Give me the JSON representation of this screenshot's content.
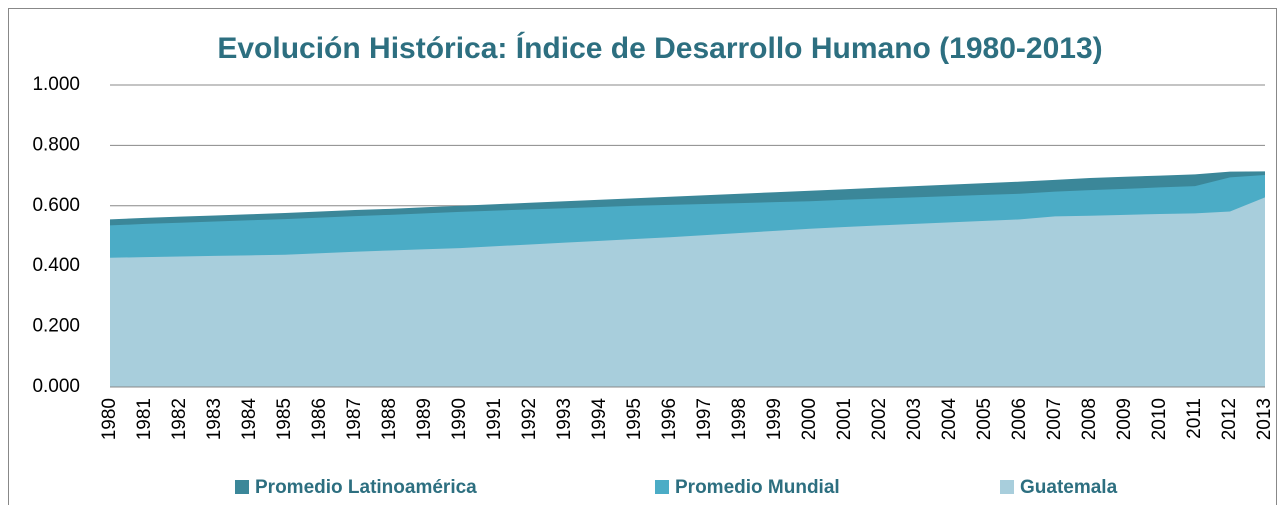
{
  "chart_data": {
    "type": "area",
    "title": "Evolución Histórica:   Índice de Desarrollo Humano (1980-2013)",
    "categories": [
      "1980",
      "1981",
      "1982",
      "1983",
      "1984",
      "1985",
      "1986",
      "1987",
      "1988",
      "1989",
      "1990",
      "1991",
      "1992",
      "1993",
      "1994",
      "1995",
      "1996",
      "1997",
      "1998",
      "1999",
      "2000",
      "2001",
      "2002",
      "2003",
      "2004",
      "2005",
      "2006",
      "2007",
      "2008",
      "2009",
      "2010",
      "2011",
      "2012",
      "2013"
    ],
    "series": [
      {
        "name": "Promedio Latinoamérica",
        "color": "#3b8799",
        "values": [
          0.555,
          0.56,
          0.564,
          0.568,
          0.572,
          0.576,
          0.581,
          0.586,
          0.59,
          0.595,
          0.6,
          0.605,
          0.61,
          0.615,
          0.62,
          0.625,
          0.63,
          0.635,
          0.64,
          0.645,
          0.65,
          0.655,
          0.66,
          0.665,
          0.67,
          0.675,
          0.68,
          0.686,
          0.692,
          0.696,
          0.7,
          0.704,
          0.713,
          0.714
        ]
      },
      {
        "name": "Promedio Mundial",
        "color": "#4bacc6",
        "values": [
          0.535,
          0.54,
          0.544,
          0.548,
          0.552,
          0.556,
          0.561,
          0.566,
          0.57,
          0.575,
          0.58,
          0.584,
          0.588,
          0.592,
          0.596,
          0.6,
          0.603,
          0.606,
          0.609,
          0.612,
          0.615,
          0.62,
          0.624,
          0.628,
          0.632,
          0.636,
          0.64,
          0.647,
          0.652,
          0.656,
          0.661,
          0.665,
          0.694,
          0.702
        ]
      },
      {
        "name": "Guatemala",
        "color": "#a8cedc",
        "values": [
          0.428,
          0.43,
          0.432,
          0.434,
          0.436,
          0.438,
          0.443,
          0.448,
          0.452,
          0.456,
          0.46,
          0.466,
          0.472,
          0.478,
          0.484,
          0.49,
          0.496,
          0.503,
          0.51,
          0.517,
          0.524,
          0.53,
          0.535,
          0.54,
          0.545,
          0.55,
          0.555,
          0.565,
          0.567,
          0.57,
          0.573,
          0.575,
          0.581,
          0.628
        ]
      }
    ],
    "ylim": [
      0,
      1
    ],
    "yticks": [
      {
        "value": 0,
        "label": "0.000"
      },
      {
        "value": 0.2,
        "label": "0.200"
      },
      {
        "value": 0.4,
        "label": "0.400"
      },
      {
        "value": 0.6,
        "label": "0.600"
      },
      {
        "value": 0.8,
        "label": "0.800"
      },
      {
        "value": 1,
        "label": "1.000"
      }
    ],
    "grid": true,
    "legend": "bottom"
  }
}
